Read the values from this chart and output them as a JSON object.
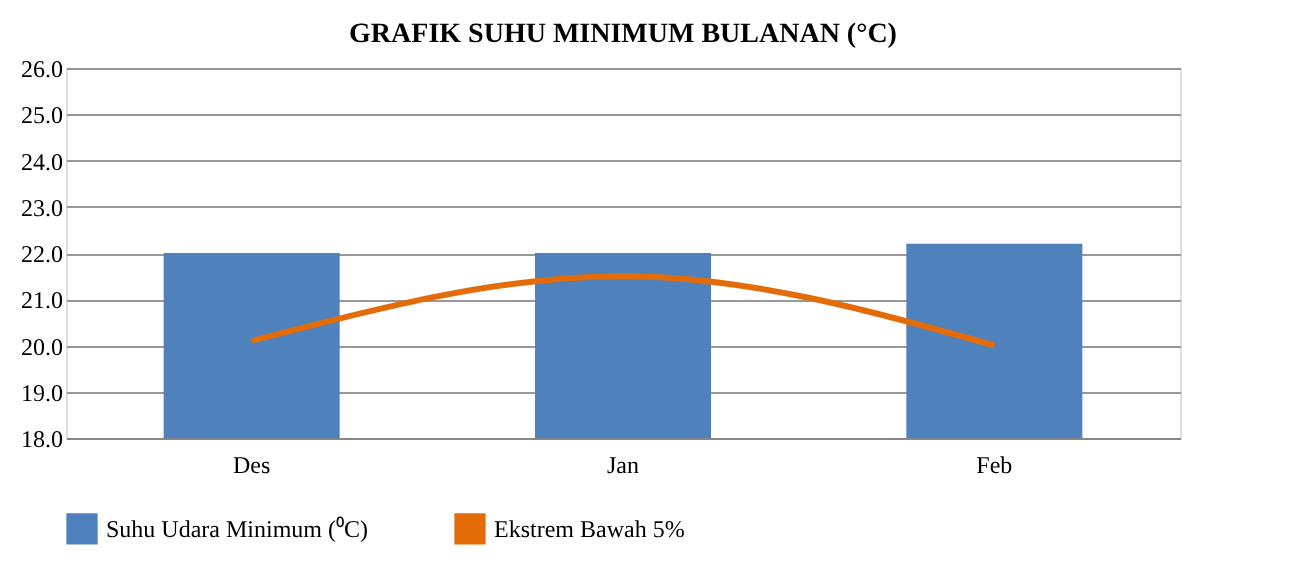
{
  "chart_data": {
    "type": "bar",
    "title": "GRAFIK SUHU MINIMUM BULANAN (°C)",
    "categories": [
      "Des",
      "Jan",
      "Feb"
    ],
    "series": [
      {
        "name": "Suhu Udara Minimum (⁰C)",
        "color": "#4f81bd",
        "values": [
          22.0,
          22.0,
          22.2
        ]
      },
      {
        "name": "Ekstrem Bawah  5%",
        "type": "line",
        "color": "#e36c09",
        "values": [
          20.1,
          21.5,
          20.0
        ]
      }
    ],
    "ylim": [
      18,
      26
    ],
    "yticks": [
      {
        "value": 18,
        "label": "18.0"
      },
      {
        "value": 19,
        "label": "19.0"
      },
      {
        "value": 20,
        "label": "20.0"
      },
      {
        "value": 21,
        "label": "21.0"
      },
      {
        "value": 22,
        "label": "22.0"
      },
      {
        "value": 23,
        "label": "23.0"
      },
      {
        "value": 24,
        "label": "24.0"
      },
      {
        "value": 25,
        "label": "25.0"
      },
      {
        "value": 26,
        "label": "26.0"
      }
    ],
    "grid": "y",
    "legend": "bottom",
    "marker": "none",
    "line_style": "solid"
  }
}
